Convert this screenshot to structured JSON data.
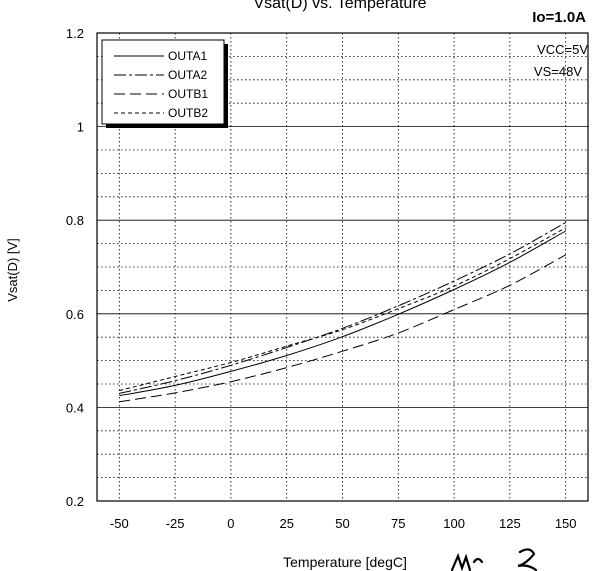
{
  "chart_data": {
    "type": "line",
    "title": "Vsat(D) vs. Temperature",
    "condition_label": "Io=1.0A",
    "annotations": [
      "VCC=5V",
      "VS=48V"
    ],
    "xlabel": "Temperature [degC]",
    "ylabel": "Vsat(D)  [V]",
    "xlim": [
      -60,
      160
    ],
    "ylim": [
      0.2,
      1.2
    ],
    "x_ticks": [
      -50,
      -25,
      0,
      25,
      50,
      75,
      100,
      125,
      150
    ],
    "y_ticks": [
      0.2,
      0.4,
      0.6,
      0.8,
      1,
      1.2
    ],
    "y_tick_labels": [
      "0.2",
      "0.4",
      "0.6",
      "0.8",
      "1",
      "1.2"
    ],
    "grid": true,
    "legend_position": "top-left",
    "x": [
      -50,
      -25,
      0,
      25,
      50,
      75,
      100,
      125,
      150
    ],
    "series": [
      {
        "name": "OUTA1",
        "style": "solid",
        "values": [
          0.425,
          0.447,
          0.477,
          0.511,
          0.551,
          0.599,
          0.652,
          0.71,
          0.777
        ]
      },
      {
        "name": "OUTA2",
        "style": "dashdot",
        "values": [
          0.43,
          0.457,
          0.49,
          0.528,
          0.569,
          0.617,
          0.67,
          0.728,
          0.795
        ]
      },
      {
        "name": "OUTB1",
        "style": "longdash",
        "values": [
          0.412,
          0.431,
          0.455,
          0.485,
          0.52,
          0.559,
          0.609,
          0.661,
          0.726
        ]
      },
      {
        "name": "OUTB2",
        "style": "dotted",
        "values": [
          0.436,
          0.466,
          0.496,
          0.531,
          0.566,
          0.611,
          0.659,
          0.718,
          0.784
        ]
      }
    ]
  }
}
